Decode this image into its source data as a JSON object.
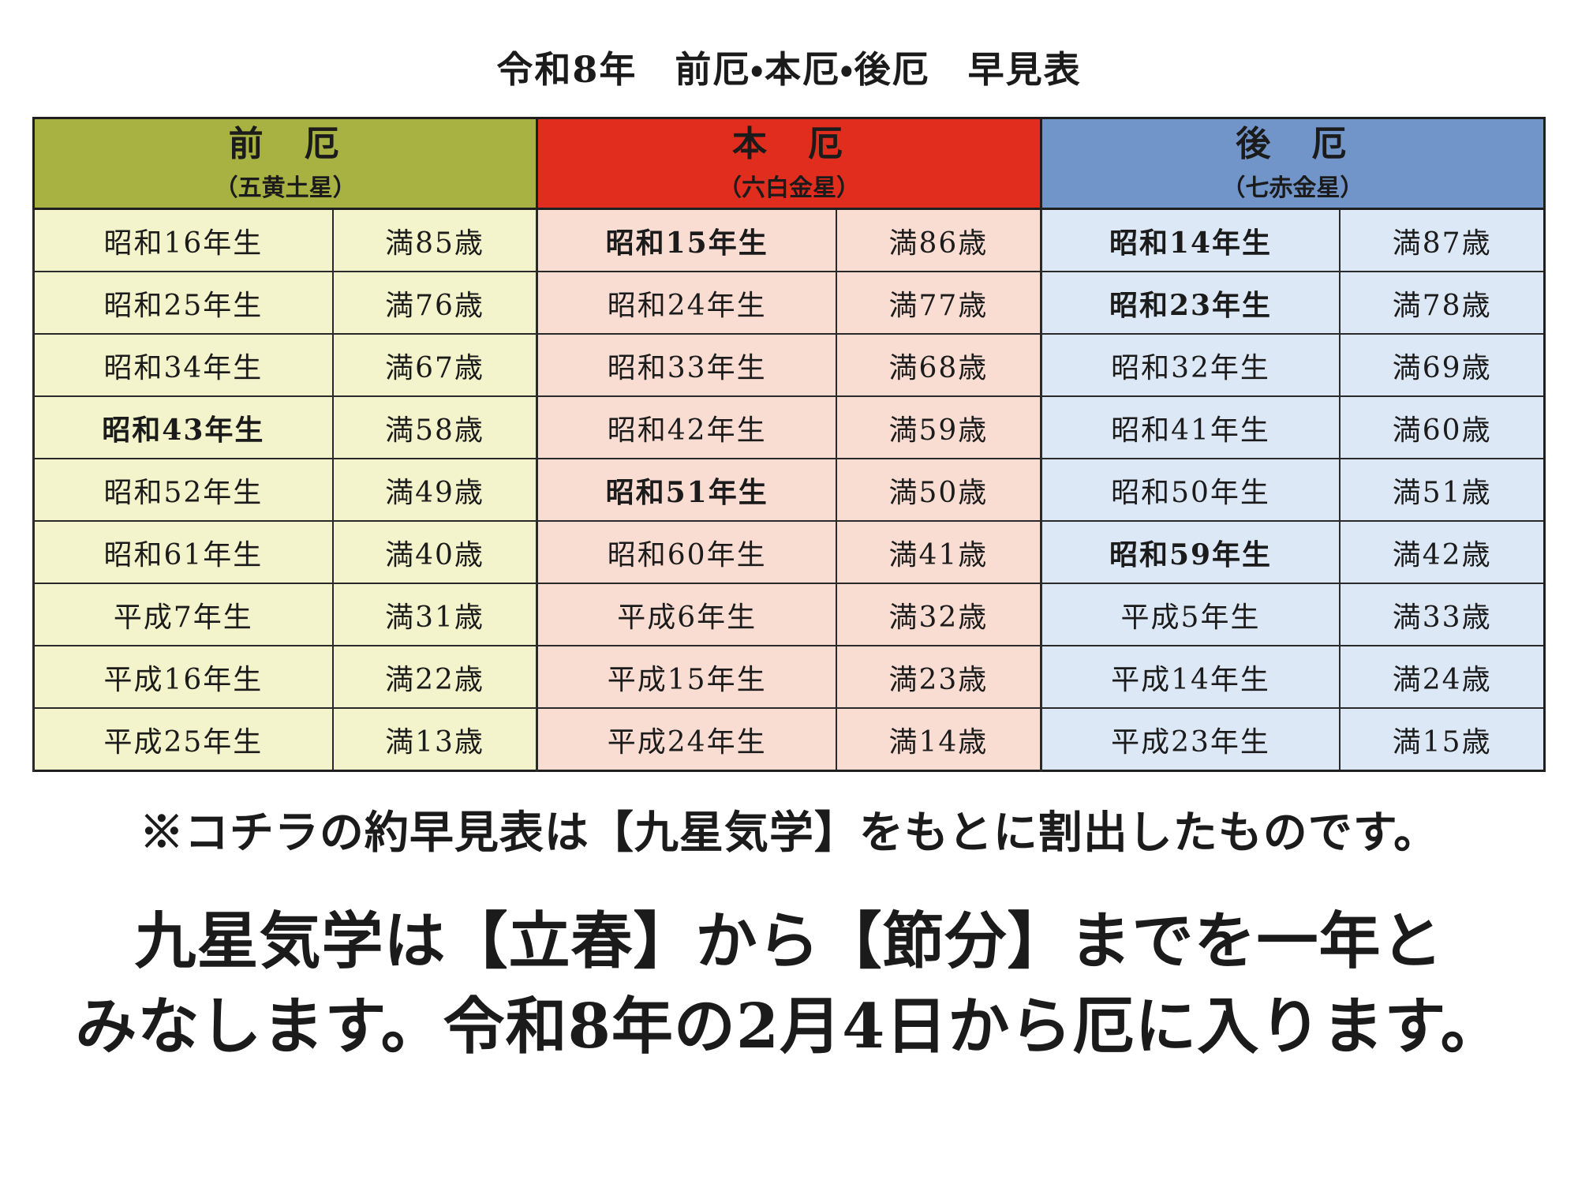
{
  "title": "令和8年　前厄・本厄・後厄　早見表",
  "table": {
    "groups": [
      {
        "name": "前　厄",
        "subtitle": "（五黄土星）",
        "header_bg": "#a8b242",
        "body_bg": "#f3f4cb"
      },
      {
        "name": "本　厄",
        "subtitle": "（六白金星）",
        "header_bg": "#e02d1e",
        "body_bg": "#f9ddd3"
      },
      {
        "name": "後　厄",
        "subtitle": "（七赤金星）",
        "header_bg": "#7195c9",
        "body_bg": "#dde8f6"
      }
    ],
    "rows": [
      [
        {
          "year": "昭和16年生",
          "age": "満85歳",
          "bold": false
        },
        {
          "year": "昭和15年生",
          "age": "満86歳",
          "bold": true
        },
        {
          "year": "昭和14年生",
          "age": "満87歳",
          "bold": true
        }
      ],
      [
        {
          "year": "昭和25年生",
          "age": "満76歳",
          "bold": false
        },
        {
          "year": "昭和24年生",
          "age": "満77歳",
          "bold": false
        },
        {
          "year": "昭和23年生",
          "age": "満78歳",
          "bold": true
        }
      ],
      [
        {
          "year": "昭和34年生",
          "age": "満67歳",
          "bold": false
        },
        {
          "year": "昭和33年生",
          "age": "満68歳",
          "bold": false
        },
        {
          "year": "昭和32年生",
          "age": "満69歳",
          "bold": false
        }
      ],
      [
        {
          "year": "昭和43年生",
          "age": "満58歳",
          "bold": true
        },
        {
          "year": "昭和42年生",
          "age": "満59歳",
          "bold": false
        },
        {
          "year": "昭和41年生",
          "age": "満60歳",
          "bold": false
        }
      ],
      [
        {
          "year": "昭和52年生",
          "age": "満49歳",
          "bold": false
        },
        {
          "year": "昭和51年生",
          "age": "満50歳",
          "bold": true
        },
        {
          "year": "昭和50年生",
          "age": "満51歳",
          "bold": false
        }
      ],
      [
        {
          "year": "昭和61年生",
          "age": "満40歳",
          "bold": false
        },
        {
          "year": "昭和60年生",
          "age": "満41歳",
          "bold": false
        },
        {
          "year": "昭和59年生",
          "age": "満42歳",
          "bold": true
        }
      ],
      [
        {
          "year": "平成7年生",
          "age": "満31歳",
          "bold": false
        },
        {
          "year": "平成6年生",
          "age": "満32歳",
          "bold": false
        },
        {
          "year": "平成5年生",
          "age": "満33歳",
          "bold": false
        }
      ],
      [
        {
          "year": "平成16年生",
          "age": "満22歳",
          "bold": false
        },
        {
          "year": "平成15年生",
          "age": "満23歳",
          "bold": false
        },
        {
          "year": "平成14年生",
          "age": "満24歳",
          "bold": false
        }
      ],
      [
        {
          "year": "平成25年生",
          "age": "満13歳",
          "bold": false
        },
        {
          "year": "平成24年生",
          "age": "満14歳",
          "bold": false
        },
        {
          "year": "平成23年生",
          "age": "満15歳",
          "bold": false
        }
      ]
    ]
  },
  "note": "※コチラの約早見表は【九星気学】をもとに割出したものです。",
  "footer": {
    "line1": "九星気学は【立春】から【節分】までを一年と",
    "line2": "みなします。令和8年の2月4日から厄に入ります。"
  },
  "colors": {
    "border": "#1f1f1f",
    "text": "#1b1b1b"
  }
}
